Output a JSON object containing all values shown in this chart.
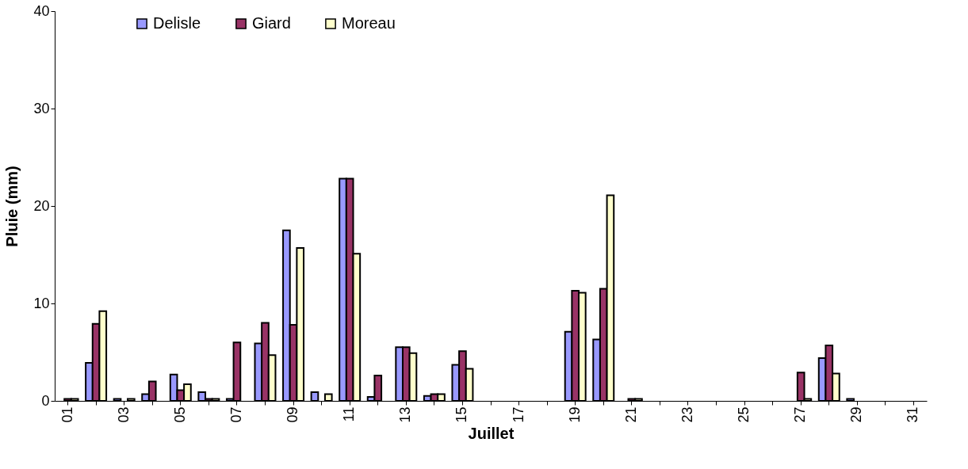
{
  "chart_data": {
    "type": "bar",
    "xlabel": "Juillet",
    "ylabel": "Pluie (mm)",
    "categories": [
      "01",
      null,
      "03",
      null,
      "05",
      null,
      "07",
      null,
      "09",
      null,
      "11",
      null,
      "13",
      null,
      "15",
      null,
      "17",
      null,
      "19",
      null,
      "21",
      null,
      "23",
      null,
      "25",
      null,
      "27",
      null,
      "29",
      null,
      "31"
    ],
    "series": [
      {
        "name": "Delisle",
        "color": "#9999ff",
        "values": [
          null,
          3.9,
          0.2,
          0.7,
          2.7,
          0.9,
          0.2,
          5.9,
          17.5,
          0.9,
          22.8,
          0.4,
          5.5,
          0.5,
          3.7,
          null,
          null,
          null,
          7.1,
          6.3,
          null,
          null,
          null,
          null,
          null,
          null,
          null,
          4.4,
          0.2,
          null,
          null
        ]
      },
      {
        "name": "Giard",
        "color": "#993366",
        "values": [
          0.2,
          7.9,
          null,
          2.0,
          1.1,
          0.2,
          6.0,
          8.0,
          7.8,
          null,
          22.8,
          2.6,
          5.5,
          0.7,
          5.1,
          null,
          null,
          null,
          11.3,
          11.5,
          0.2,
          null,
          null,
          null,
          null,
          null,
          2.9,
          5.7,
          null,
          null,
          null
        ]
      },
      {
        "name": "Moreau",
        "color": "#ffffcc",
        "values": [
          0.2,
          9.2,
          0.2,
          null,
          1.7,
          0.2,
          null,
          4.7,
          15.7,
          0.7,
          15.1,
          null,
          4.9,
          0.7,
          3.3,
          null,
          null,
          null,
          11.1,
          21.1,
          0.2,
          null,
          null,
          null,
          null,
          null,
          0.2,
          2.8,
          null,
          null,
          null
        ]
      }
    ],
    "ylim": [
      0,
      40
    ],
    "yticks": [
      0,
      10,
      20,
      30,
      40
    ],
    "grid": false,
    "legend": "top left"
  }
}
